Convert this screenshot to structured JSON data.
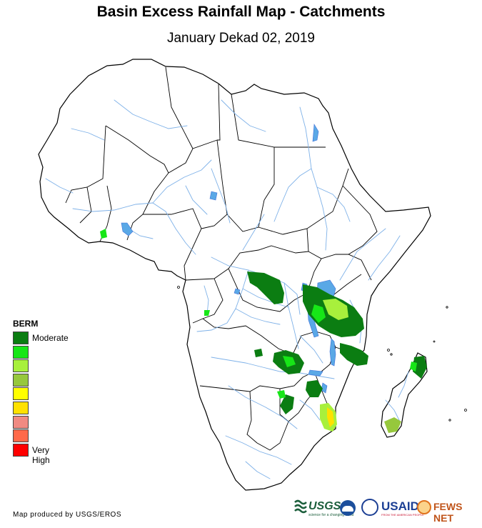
{
  "title": "Basin Excess Rainfall Map - Catchments",
  "subtitle": "January Dekad 02, 2019",
  "legend": {
    "title": "BERM",
    "items": [
      {
        "label": "Moderate",
        "color": "#0b7d12"
      },
      {
        "label": "",
        "color": "#17e617"
      },
      {
        "label": "",
        "color": "#a8f03c"
      },
      {
        "label": "",
        "color": "#96c83c"
      },
      {
        "label": "",
        "color": "#ffff00"
      },
      {
        "label": "",
        "color": "#ffe100"
      },
      {
        "label": "",
        "color": "#f08a82"
      },
      {
        "label": "",
        "color": "#ff6a4a"
      },
      {
        "label": "Very High",
        "color": "#ff0000"
      }
    ]
  },
  "credit": "Map produced by USGS/EROS",
  "logos": {
    "usgs": "USGS",
    "usgs_tagline": "science for a changing world",
    "usaid": "USAID",
    "usaid_tagline": "FROM THE AMERICAN PEOPLE",
    "fewsnet": "FEWS NET"
  },
  "colors": {
    "river": "#7eb1e8",
    "lake": "#5aa8e6",
    "border": "#000000"
  }
}
